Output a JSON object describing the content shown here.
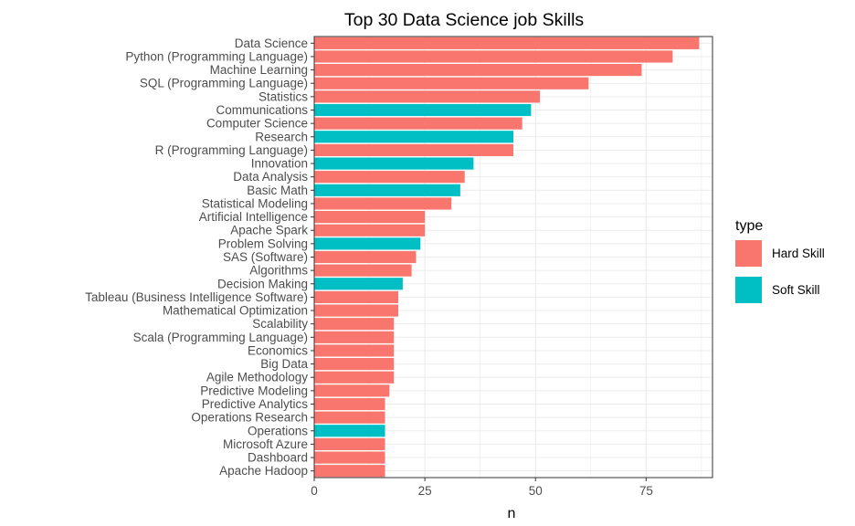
{
  "chart_data": {
    "type": "bar",
    "orientation": "horizontal",
    "title": "Top 30 Data Science job Skills",
    "xlabel": "n",
    "ylabel": "",
    "xlim": [
      0,
      90
    ],
    "xticks": [
      0,
      25,
      50,
      75
    ],
    "grid": true,
    "legend": {
      "title": "type",
      "position": "right",
      "entries": [
        {
          "label": "Hard Skill",
          "color": "#F8766D"
        },
        {
          "label": "Soft Skill",
          "color": "#00BFC4"
        }
      ]
    },
    "categories": [
      "Data Science",
      "Python (Programming Language)",
      "Machine Learning",
      "SQL (Programming Language)",
      "Statistics",
      "Communications",
      "Computer Science",
      "Research",
      "R (Programming Language)",
      "Innovation",
      "Data Analysis",
      "Basic Math",
      "Statistical Modeling",
      "Artificial Intelligence",
      "Apache Spark",
      "Problem Solving",
      "SAS (Software)",
      "Algorithms",
      "Decision Making",
      "Tableau (Business Intelligence Software)",
      "Mathematical Optimization",
      "Scalability",
      "Scala (Programming Language)",
      "Economics",
      "Big Data",
      "Agile Methodology",
      "Predictive Modeling",
      "Predictive Analytics",
      "Operations Research",
      "Operations",
      "Microsoft Azure",
      "Dashboard",
      "Apache Hadoop"
    ],
    "values": [
      87,
      81,
      74,
      62,
      51,
      49,
      47,
      45,
      45,
      36,
      34,
      33,
      31,
      25,
      25,
      24,
      23,
      22,
      20,
      19,
      19,
      18,
      18,
      18,
      18,
      18,
      17,
      16,
      16,
      16,
      16,
      16,
      16
    ],
    "types": [
      "Hard Skill",
      "Hard Skill",
      "Hard Skill",
      "Hard Skill",
      "Hard Skill",
      "Soft Skill",
      "Hard Skill",
      "Soft Skill",
      "Hard Skill",
      "Soft Skill",
      "Hard Skill",
      "Soft Skill",
      "Hard Skill",
      "Hard Skill",
      "Hard Skill",
      "Soft Skill",
      "Hard Skill",
      "Hard Skill",
      "Soft Skill",
      "Hard Skill",
      "Hard Skill",
      "Hard Skill",
      "Hard Skill",
      "Hard Skill",
      "Hard Skill",
      "Hard Skill",
      "Hard Skill",
      "Hard Skill",
      "Hard Skill",
      "Soft Skill",
      "Hard Skill",
      "Hard Skill",
      "Hard Skill"
    ]
  }
}
